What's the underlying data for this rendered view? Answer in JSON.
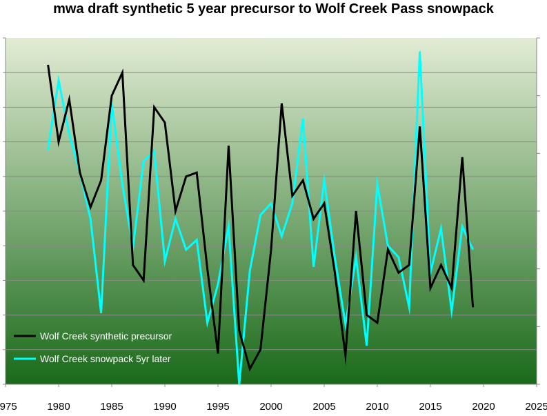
{
  "chart_data": {
    "type": "line",
    "title": "mwa draft synthetic 5 year precursor to Wolf Creek Pass snowpack",
    "xlabel": "",
    "ylabel": "",
    "xlim": [
      1975,
      2025
    ],
    "x_ticks": [
      "1975",
      "1980",
      "1985",
      "1990",
      "1995",
      "2000",
      "2005",
      "2010",
      "2015",
      "2020",
      "2025"
    ],
    "y_left_levels": 10,
    "y_right_levels": 6,
    "grid": true,
    "legend_position": "bottom-left",
    "background": {
      "top": "#e2ecd4",
      "bottom": "#1a6a1a"
    },
    "series": [
      {
        "name": "Wolf Creek synthetic precursor",
        "color": "#000000",
        "x": [
          1979,
          1980,
          1981,
          1982,
          1983,
          1984,
          1985,
          1986,
          1987,
          1988,
          1989,
          1990,
          1991,
          1992,
          1993,
          1994,
          1995,
          1996,
          1997,
          1998,
          1999,
          2000,
          2001,
          2002,
          2003,
          2004,
          2005,
          2006,
          2007,
          2008,
          2009,
          2010,
          2011,
          2012,
          2013,
          2014,
          2015,
          2016,
          2017,
          2018,
          2019
        ],
        "y": [
          8.3,
          6.3,
          7.4,
          5.5,
          4.6,
          5.3,
          7.5,
          8.1,
          3.1,
          2.7,
          7.2,
          6.8,
          4.5,
          5.4,
          5.5,
          3.0,
          0.8,
          6.2,
          1.4,
          0.4,
          0.9,
          3.5,
          7.3,
          4.9,
          5.3,
          4.3,
          4.7,
          2.9,
          0.75,
          4.5,
          1.8,
          1.6,
          3.5,
          2.9,
          3.1,
          6.7,
          2.5,
          3.1,
          2.5,
          5.9,
          2.0
        ]
      },
      {
        "name": "Wolf Creek snowpack 5yr later",
        "color": "#00ffff",
        "x": [
          1979,
          1980,
          1981,
          1982,
          1983,
          1984,
          1985,
          1986,
          1987,
          1988,
          1989,
          1990,
          1991,
          1992,
          1993,
          1994,
          1995,
          1996,
          1997,
          1998,
          1999,
          2000,
          2001,
          2002,
          2003,
          2004,
          2005,
          2006,
          2007,
          2008,
          2009,
          2010,
          2011,
          2012,
          2013,
          2014,
          2015,
          2016,
          2017,
          2018,
          2019
        ],
        "y": [
          6.1,
          7.9,
          6.5,
          5.5,
          4.3,
          1.85,
          7.3,
          5.2,
          3.55,
          5.8,
          6.05,
          3.2,
          4.3,
          3.5,
          3.75,
          1.6,
          2.6,
          4.1,
          0.0,
          2.95,
          4.4,
          4.7,
          3.85,
          4.7,
          6.9,
          3.05,
          5.3,
          3.3,
          1.55,
          3.3,
          1.0,
          5.2,
          3.6,
          3.3,
          2.0,
          8.65,
          2.9,
          4.05,
          1.9,
          4.1,
          3.5
        ]
      }
    ]
  }
}
